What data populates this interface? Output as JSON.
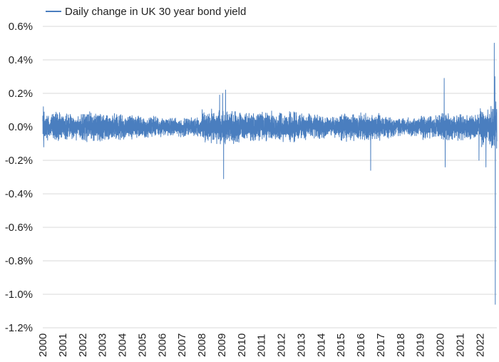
{
  "chart_data": {
    "type": "line",
    "title": "",
    "xlabel": "",
    "ylabel": "",
    "legend_position": "top-left",
    "grid": "horizontal",
    "series": [
      {
        "name": "Daily change in UK 30 year bond yield",
        "color": "#4a7ebf",
        "volatility_by_year": [
          {
            "year": 2000,
            "amplitude": 0.07
          },
          {
            "year": 2001,
            "amplitude": 0.06
          },
          {
            "year": 2002,
            "amplitude": 0.07
          },
          {
            "year": 2003,
            "amplitude": 0.06
          },
          {
            "year": 2004,
            "amplitude": 0.055
          },
          {
            "year": 2005,
            "amplitude": 0.05
          },
          {
            "year": 2006,
            "amplitude": 0.045
          },
          {
            "year": 2007,
            "amplitude": 0.045
          },
          {
            "year": 2008,
            "amplitude": 0.08
          },
          {
            "year": 2009,
            "amplitude": 0.08
          },
          {
            "year": 2010,
            "amplitude": 0.065
          },
          {
            "year": 2011,
            "amplitude": 0.07
          },
          {
            "year": 2012,
            "amplitude": 0.07
          },
          {
            "year": 2013,
            "amplitude": 0.06
          },
          {
            "year": 2014,
            "amplitude": 0.05
          },
          {
            "year": 2015,
            "amplitude": 0.065
          },
          {
            "year": 2016,
            "amplitude": 0.065
          },
          {
            "year": 2017,
            "amplitude": 0.05
          },
          {
            "year": 2018,
            "amplitude": 0.045
          },
          {
            "year": 2019,
            "amplitude": 0.055
          },
          {
            "year": 2020,
            "amplitude": 0.065
          },
          {
            "year": 2021,
            "amplitude": 0.06
          },
          {
            "year": 2022,
            "amplitude": 0.1
          }
        ],
        "notable_points": [
          {
            "x": 2000.03,
            "y": 0.12
          },
          {
            "x": 2000.05,
            "y": -0.12
          },
          {
            "x": 2008.9,
            "y": 0.19
          },
          {
            "x": 2009.05,
            "y": 0.2
          },
          {
            "x": 2009.1,
            "y": -0.31
          },
          {
            "x": 2009.2,
            "y": 0.22
          },
          {
            "x": 2016.5,
            "y": -0.26
          },
          {
            "x": 2020.2,
            "y": 0.29
          },
          {
            "x": 2020.25,
            "y": -0.24
          },
          {
            "x": 2021.95,
            "y": -0.2
          },
          {
            "x": 2022.3,
            "y": -0.24
          },
          {
            "x": 2022.72,
            "y": 0.5
          },
          {
            "x": 2022.75,
            "y": 0.3
          },
          {
            "x": 2022.77,
            "y": -1.06
          },
          {
            "x": 2022.8,
            "y": 0.15
          }
        ]
      }
    ],
    "x_range": [
      2000,
      2022.85
    ],
    "ylim": [
      -1.2,
      0.6
    ],
    "x_ticks": [
      "2000",
      "2001",
      "2002",
      "2003",
      "2004",
      "2005",
      "2006",
      "2007",
      "2008",
      "2009",
      "2010",
      "2011",
      "2012",
      "2013",
      "2014",
      "2015",
      "2016",
      "2017",
      "2018",
      "2019",
      "2020",
      "2021",
      "2022"
    ],
    "y_ticks": [
      {
        "value": 0.6,
        "label": "0.6%"
      },
      {
        "value": 0.4,
        "label": "0.4%"
      },
      {
        "value": 0.2,
        "label": "0.2%"
      },
      {
        "value": 0.0,
        "label": "0.0%"
      },
      {
        "value": -0.2,
        "label": "-0.2%"
      },
      {
        "value": -0.4,
        "label": "-0.4%"
      },
      {
        "value": -0.6,
        "label": "-0.6%"
      },
      {
        "value": -0.8,
        "label": "-0.8%"
      },
      {
        "value": -1.0,
        "label": "-1.0%"
      },
      {
        "value": -1.2,
        "label": "-1.2%"
      }
    ]
  }
}
